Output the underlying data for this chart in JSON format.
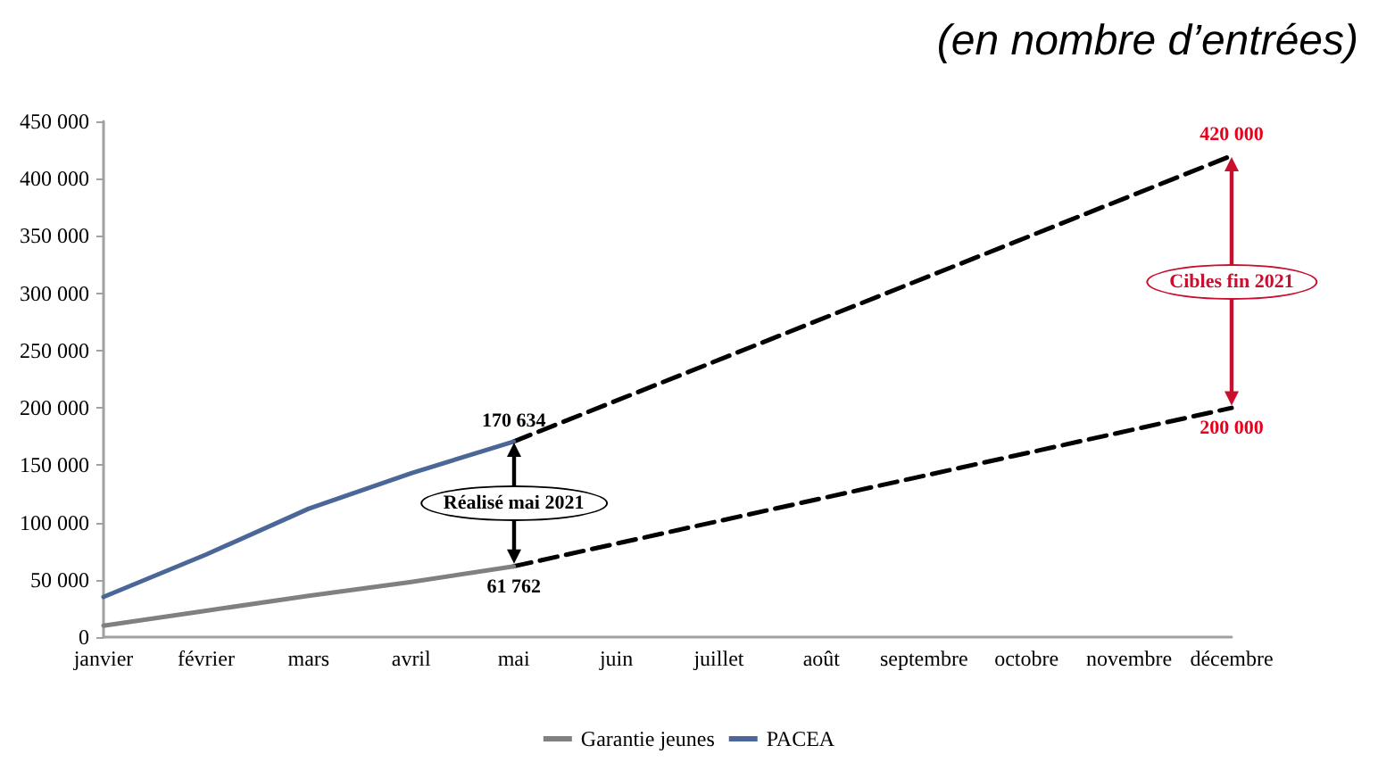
{
  "chart_data": {
    "type": "line",
    "title": "(en nombre d’entrées)",
    "categories": [
      "janvier",
      "février",
      "mars",
      "avril",
      "mai",
      "juin",
      "juillet",
      "août",
      "septembre",
      "octobre",
      "novembre",
      "décembre"
    ],
    "series": [
      {
        "name": "Garantie jeunes",
        "color": "#808080",
        "values": [
          10000,
          23000,
          36000,
          48000,
          61762,
          null,
          null,
          null,
          null,
          null,
          null,
          null
        ],
        "value_labels": [
          null,
          null,
          null,
          null,
          "61 762",
          null,
          null,
          null,
          null,
          null,
          null,
          null
        ]
      },
      {
        "name": "PACEA",
        "color": "#4a6797",
        "values": [
          35000,
          72000,
          112000,
          143000,
          170634,
          null,
          null,
          null,
          null,
          null,
          null,
          null
        ],
        "value_labels": [
          null,
          null,
          null,
          null,
          "170 634",
          null,
          null,
          null,
          null,
          null,
          null,
          null
        ]
      },
      {
        "color": "#000000",
        "line_style": "dashed",
        "values": [
          null,
          null,
          null,
          null,
          61762,
          null,
          null,
          null,
          null,
          null,
          null,
          200000
        ],
        "value_labels": [
          null,
          null,
          null,
          null,
          null,
          null,
          null,
          null,
          null,
          null,
          null,
          "200 000"
        ]
      },
      {
        "color": "#000000",
        "line_style": "dashed",
        "values": [
          null,
          null,
          null,
          null,
          170634,
          null,
          null,
          null,
          null,
          null,
          null,
          420000
        ],
        "value_labels": [
          null,
          null,
          null,
          null,
          null,
          null,
          null,
          null,
          null,
          null,
          null,
          "420 000"
        ]
      }
    ],
    "ylim": [
      0,
      450000
    ],
    "yticks": [
      {
        "value": 0,
        "label": "0"
      },
      {
        "value": 50000,
        "label": "50 000"
      },
      {
        "value": 100000,
        "label": "100 000"
      },
      {
        "value": 150000,
        "label": "150 000"
      },
      {
        "value": 200000,
        "label": "200 000"
      },
      {
        "value": 250000,
        "label": "250 000"
      },
      {
        "value": 300000,
        "label": "300 000"
      },
      {
        "value": 350000,
        "label": "350 000"
      },
      {
        "value": 400000,
        "label": "400 000"
      },
      {
        "value": 450000,
        "label": "450 000"
      }
    ],
    "annotations": [
      "Réalisé mai 2021",
      "Cibles fin 2021"
    ],
    "grid": false,
    "legend": "bottom",
    "marker": "none",
    "line_style": "solid"
  }
}
